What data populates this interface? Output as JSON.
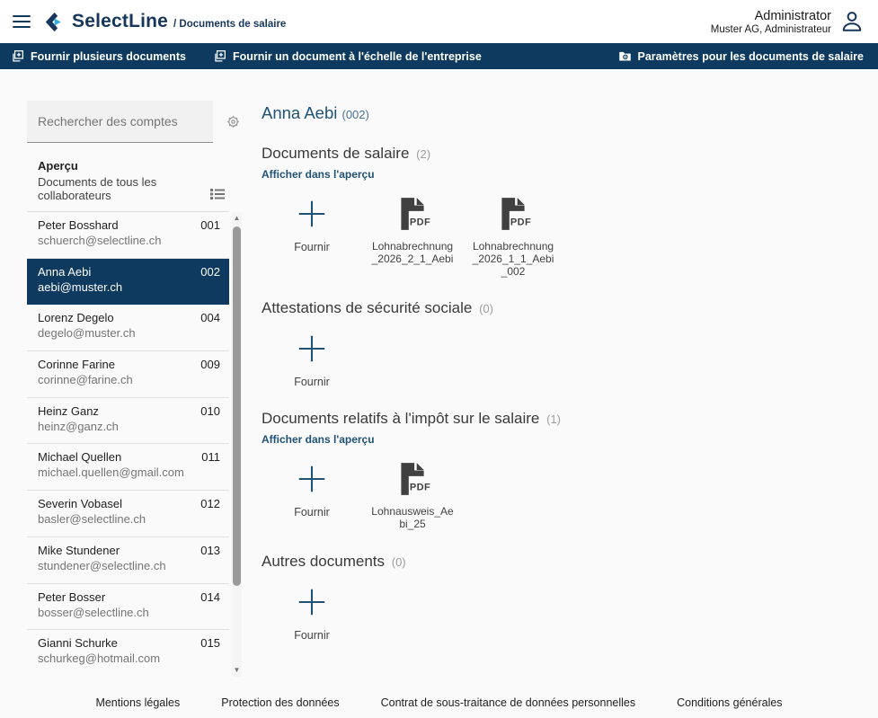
{
  "colors": {
    "navy": "#0d3a5e",
    "accent_blue": "#1f5276",
    "cyan": "#2da9dc",
    "pdf_gray": "#404040"
  },
  "header": {
    "brand": "SelectLine",
    "breadcrumb": "/ Documents de salaire",
    "user_name": "Administrator",
    "user_role": "Muster AG, Administrateur"
  },
  "toolbar": {
    "provide_multiple": "Fournir plusieurs documents",
    "provide_company_wide": "Fournir un document à l'échelle de l'entreprise",
    "settings": "Paramètres pour les documents de salaire"
  },
  "sidebar": {
    "search_placeholder": "Rechercher des comptes",
    "overview_title": "Aperçu",
    "overview_subtitle": "Documents de tous les collaborateurs",
    "employees": [
      {
        "name": "Peter Bosshard",
        "email": "schuerch@selectline.ch",
        "number": "001",
        "selected": false
      },
      {
        "name": "Anna Aebi",
        "email": "aebi@muster.ch",
        "number": "002",
        "selected": true
      },
      {
        "name": "Lorenz Degelo",
        "email": "degelo@muster.ch",
        "number": "004",
        "selected": false
      },
      {
        "name": "Corinne Farine",
        "email": "corinne@farine.ch",
        "number": "009",
        "selected": false
      },
      {
        "name": "Heinz Ganz",
        "email": "heinz@ganz.ch",
        "number": "010",
        "selected": false
      },
      {
        "name": "Michael Quellen",
        "email": "michael.quellen@gmail.com",
        "number": "011",
        "selected": false
      },
      {
        "name": "Severin Vobasel",
        "email": "basler@selectline.ch",
        "number": "012",
        "selected": false
      },
      {
        "name": "Mike Stundener",
        "email": "stundener@selectline.ch",
        "number": "013",
        "selected": false
      },
      {
        "name": "Peter Bosser",
        "email": "bosser@selectline.ch",
        "number": "014",
        "selected": false
      },
      {
        "name": "Gianni Schurke",
        "email": "schurkeg@hotmail.com",
        "number": "015",
        "selected": false
      }
    ]
  },
  "main": {
    "title": "Anna Aebi",
    "title_number": "(002)",
    "provide_label": "Fournir",
    "show_in_preview": "Afficher dans l'aperçu",
    "sections": [
      {
        "title": "Documents de salaire",
        "count": "(2)",
        "has_preview_link": true,
        "documents": [
          "Lohnabrechnung_2026_2_1_Aebi",
          "Lohnabrechnung_2026_1_1_Aebi_002"
        ]
      },
      {
        "title": "Attestations de sécurité sociale",
        "count": "(0)",
        "has_preview_link": false,
        "documents": []
      },
      {
        "title": "Documents relatifs à l'impôt sur le salaire",
        "count": "(1)",
        "has_preview_link": true,
        "documents": [
          "Lohnausweis_Aebi_25"
        ]
      },
      {
        "title": "Autres documents",
        "count": "(0)",
        "has_preview_link": false,
        "documents": []
      }
    ]
  },
  "footer": {
    "links": [
      "Mentions légales",
      "Protection des données",
      "Contrat de sous-traitance de données personnelles",
      "Conditions générales"
    ]
  }
}
